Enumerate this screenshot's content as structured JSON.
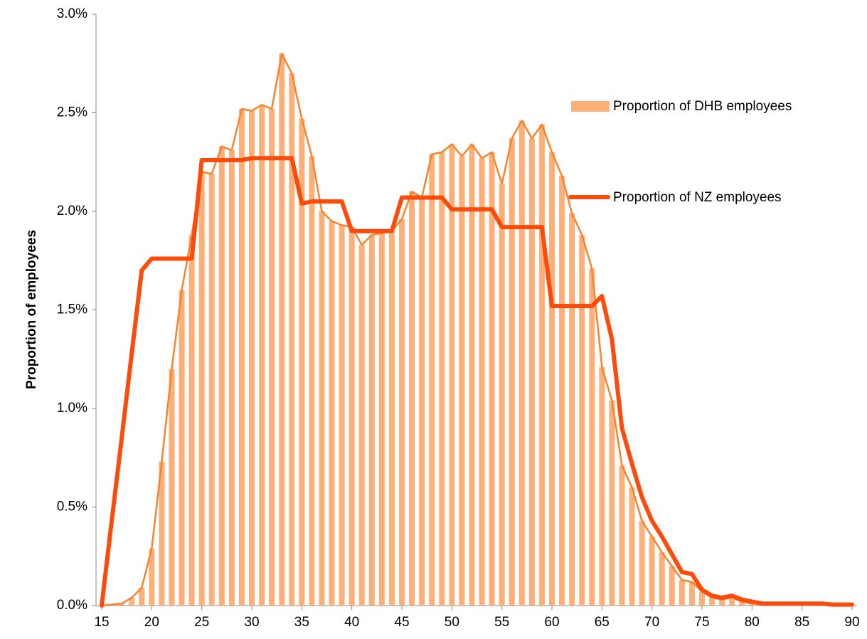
{
  "chart_data": {
    "type": "bar_line",
    "y_label": "Proportion of  employees",
    "x": [
      15,
      16,
      17,
      18,
      19,
      20,
      21,
      22,
      23,
      24,
      25,
      26,
      27,
      28,
      29,
      30,
      31,
      32,
      33,
      34,
      35,
      36,
      37,
      38,
      39,
      40,
      41,
      42,
      43,
      44,
      45,
      46,
      47,
      48,
      49,
      50,
      51,
      52,
      53,
      54,
      55,
      56,
      57,
      58,
      59,
      60,
      61,
      62,
      63,
      64,
      65,
      66,
      67,
      68,
      69,
      70,
      71,
      72,
      73,
      74,
      75,
      76,
      77,
      78,
      79,
      80,
      81,
      82,
      83,
      84,
      85,
      86,
      87,
      88,
      89,
      90
    ],
    "series": [
      {
        "name": "Proportion of DHB employees",
        "color": "#fbb07a",
        "line_color": "#f5842f",
        "values": [
          0,
          0.005,
          0.01,
          0.04,
          0.09,
          0.29,
          0.73,
          1.2,
          1.6,
          1.88,
          2.2,
          2.19,
          2.33,
          2.31,
          2.52,
          2.51,
          2.54,
          2.52,
          2.8,
          2.7,
          2.47,
          2.28,
          2.0,
          1.95,
          1.93,
          1.92,
          1.83,
          1.88,
          1.89,
          1.9,
          1.96,
          2.1,
          2.07,
          2.29,
          2.3,
          2.34,
          2.28,
          2.34,
          2.27,
          2.3,
          2.14,
          2.37,
          2.46,
          2.37,
          2.44,
          2.3,
          2.18,
          1.99,
          1.88,
          1.71,
          1.21,
          1.04,
          0.71,
          0.6,
          0.43,
          0.35,
          0.27,
          0.2,
          0.13,
          0.12,
          0.07,
          0.04,
          0.03,
          0.04,
          0.02,
          0.01,
          0.01,
          0.01,
          0.01,
          0.005,
          0.005,
          0.005,
          0.005,
          0.005,
          0.003,
          0.002
        ]
      },
      {
        "name": "Proportion of NZ employees",
        "color": "#fc4b0b",
        "values": [
          0,
          0.43,
          0.85,
          1.28,
          1.7,
          1.76,
          1.76,
          1.76,
          1.76,
          1.76,
          2.26,
          2.26,
          2.26,
          2.26,
          2.26,
          2.27,
          2.27,
          2.27,
          2.27,
          2.27,
          2.04,
          2.05,
          2.05,
          2.05,
          2.05,
          1.9,
          1.9,
          1.9,
          1.9,
          1.9,
          2.07,
          2.07,
          2.07,
          2.07,
          2.07,
          2.01,
          2.01,
          2.01,
          2.01,
          2.01,
          1.92,
          1.92,
          1.92,
          1.92,
          1.92,
          1.52,
          1.52,
          1.52,
          1.52,
          1.52,
          1.57,
          1.35,
          0.9,
          0.72,
          0.55,
          0.43,
          0.35,
          0.26,
          0.17,
          0.16,
          0.08,
          0.05,
          0.04,
          0.05,
          0.03,
          0.02,
          0.01,
          0.01,
          0.01,
          0.01,
          0.01,
          0.01,
          0.01,
          0.005,
          0.005,
          0.005
        ]
      }
    ],
    "xlim": [
      14.43,
      90.5
    ],
    "xticks": [
      15,
      20,
      25,
      30,
      35,
      40,
      45,
      50,
      55,
      60,
      65,
      70,
      75,
      80,
      85,
      90
    ],
    "ylim": [
      0,
      3
    ],
    "yticks": [
      {
        "value": 0,
        "label": "0.0%"
      },
      {
        "value": 0.5,
        "label": "0.5%"
      },
      {
        "value": 1,
        "label": "1.0%"
      },
      {
        "value": 1.5,
        "label": "1.5%"
      },
      {
        "value": 2,
        "label": "2.0%"
      },
      {
        "value": 2.5,
        "label": "2.5%"
      },
      {
        "value": 3,
        "label": "3.0%"
      }
    ],
    "legend": "upper right",
    "grid": false
  }
}
